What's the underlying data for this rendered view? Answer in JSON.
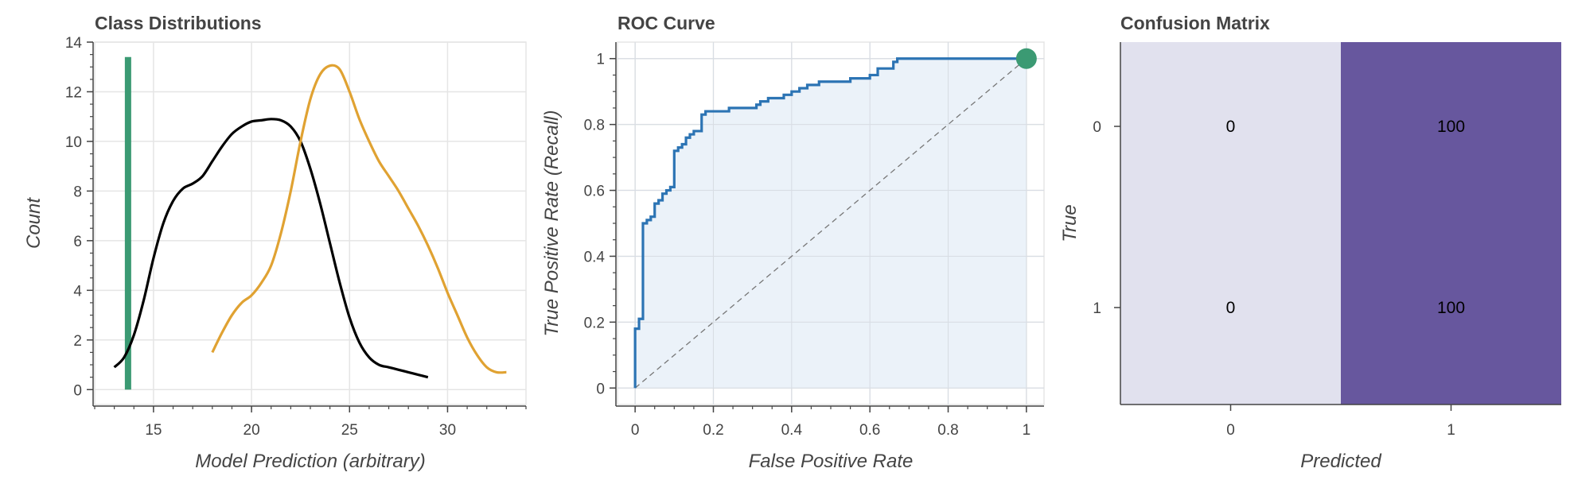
{
  "chart_data": [
    {
      "type": "line",
      "title": "Class Distributions",
      "xlabel": "Model Prediction (arbitrary)",
      "ylabel": "Count",
      "xlim": [
        12,
        34
      ],
      "ylim": [
        -0.6,
        14
      ],
      "xticks": [
        "15",
        "20",
        "25",
        "30"
      ],
      "yticks": [
        "0",
        "2",
        "4",
        "6",
        "8",
        "10",
        "12",
        "14"
      ],
      "grid": true,
      "threshold": {
        "x": 13.7,
        "y_range": [
          0,
          13.4
        ],
        "color": "#3b9a73"
      },
      "series": [
        {
          "color": "#000000",
          "x": [
            13,
            13.5,
            14,
            14.5,
            15,
            15.5,
            16,
            16.5,
            17,
            17.5,
            18,
            18.5,
            19,
            19.5,
            20,
            20.5,
            21,
            21.5,
            22,
            22.5,
            23,
            23.5,
            24,
            24.5,
            25,
            25.5,
            26,
            26.5,
            27,
            27.5,
            28,
            28.5,
            29
          ],
          "y": [
            0.9,
            1.3,
            2.2,
            3.6,
            5.3,
            6.7,
            7.6,
            8.1,
            8.3,
            8.6,
            9.2,
            9.8,
            10.3,
            10.6,
            10.8,
            10.85,
            10.9,
            10.85,
            10.6,
            10.0,
            8.9,
            7.5,
            5.9,
            4.3,
            2.9,
            1.9,
            1.3,
            1.0,
            0.9,
            0.8,
            0.7,
            0.6,
            0.5
          ]
        },
        {
          "color": "#e0a232",
          "x": [
            18,
            18.5,
            19,
            19.5,
            20,
            20.5,
            21,
            21.5,
            22,
            22.5,
            23,
            23.5,
            24,
            24.5,
            25,
            25.5,
            26,
            26.5,
            27,
            27.5,
            28,
            28.5,
            29,
            29.5,
            30,
            30.5,
            31,
            31.5,
            32,
            32.5,
            33
          ],
          "y": [
            1.5,
            2.3,
            3.0,
            3.5,
            3.8,
            4.3,
            5.0,
            6.3,
            8.0,
            10.0,
            11.7,
            12.7,
            13.05,
            12.9,
            12.0,
            10.9,
            10.0,
            9.2,
            8.6,
            8.0,
            7.3,
            6.6,
            5.8,
            4.9,
            3.9,
            3.0,
            2.1,
            1.4,
            0.9,
            0.7,
            0.7
          ]
        }
      ]
    },
    {
      "type": "line",
      "title": "ROC Curve",
      "xlabel": "False Positive Rate",
      "ylabel": "True Positive Rate (Recall)",
      "xlim": [
        -0.045,
        1.045
      ],
      "ylim": [
        -0.05,
        1.05
      ],
      "xticks": [
        "0",
        "0.2",
        "0.4",
        "0.6",
        "0.8",
        "1"
      ],
      "yticks": [
        "0",
        "0.2",
        "0.4",
        "0.6",
        "0.8",
        "1"
      ],
      "grid": true,
      "fill_color": "#e8f0f8",
      "curve_color": "#2c74b4",
      "marker": {
        "x": 1,
        "y": 1,
        "color": "#3b9a73"
      },
      "diagonal": [
        [
          0,
          0
        ],
        [
          1,
          1
        ]
      ],
      "steps": [
        [
          0,
          0
        ],
        [
          0,
          0.18
        ],
        [
          0.01,
          0.18
        ],
        [
          0.01,
          0.21
        ],
        [
          0.02,
          0.21
        ],
        [
          0.02,
          0.5
        ],
        [
          0.03,
          0.5
        ],
        [
          0.03,
          0.51
        ],
        [
          0.04,
          0.51
        ],
        [
          0.04,
          0.52
        ],
        [
          0.05,
          0.52
        ],
        [
          0.05,
          0.56
        ],
        [
          0.06,
          0.56
        ],
        [
          0.06,
          0.57
        ],
        [
          0.07,
          0.57
        ],
        [
          0.07,
          0.59
        ],
        [
          0.08,
          0.59
        ],
        [
          0.08,
          0.6
        ],
        [
          0.09,
          0.6
        ],
        [
          0.09,
          0.61
        ],
        [
          0.1,
          0.61
        ],
        [
          0.1,
          0.72
        ],
        [
          0.11,
          0.72
        ],
        [
          0.11,
          0.73
        ],
        [
          0.12,
          0.73
        ],
        [
          0.12,
          0.74
        ],
        [
          0.13,
          0.74
        ],
        [
          0.13,
          0.76
        ],
        [
          0.14,
          0.76
        ],
        [
          0.14,
          0.77
        ],
        [
          0.15,
          0.77
        ],
        [
          0.15,
          0.78
        ],
        [
          0.17,
          0.78
        ],
        [
          0.17,
          0.83
        ],
        [
          0.18,
          0.83
        ],
        [
          0.18,
          0.84
        ],
        [
          0.24,
          0.84
        ],
        [
          0.24,
          0.85
        ],
        [
          0.31,
          0.85
        ],
        [
          0.31,
          0.86
        ],
        [
          0.32,
          0.86
        ],
        [
          0.32,
          0.87
        ],
        [
          0.34,
          0.87
        ],
        [
          0.34,
          0.88
        ],
        [
          0.38,
          0.88
        ],
        [
          0.38,
          0.89
        ],
        [
          0.4,
          0.89
        ],
        [
          0.4,
          0.9
        ],
        [
          0.42,
          0.9
        ],
        [
          0.42,
          0.91
        ],
        [
          0.44,
          0.91
        ],
        [
          0.44,
          0.92
        ],
        [
          0.47,
          0.92
        ],
        [
          0.47,
          0.93
        ],
        [
          0.55,
          0.93
        ],
        [
          0.55,
          0.94
        ],
        [
          0.6,
          0.94
        ],
        [
          0.6,
          0.95
        ],
        [
          0.62,
          0.95
        ],
        [
          0.62,
          0.97
        ],
        [
          0.66,
          0.97
        ],
        [
          0.66,
          0.99
        ],
        [
          0.67,
          0.99
        ],
        [
          0.67,
          1.0
        ],
        [
          1.0,
          1.0
        ]
      ]
    },
    {
      "type": "heatmap",
      "title": "Confusion Matrix",
      "xlabel": "Predicted",
      "ylabel": "True",
      "x_categories": [
        "0",
        "1"
      ],
      "y_categories": [
        "0",
        "1"
      ],
      "values": [
        [
          0,
          100
        ],
        [
          0,
          100
        ]
      ],
      "cell_labels": [
        [
          "0",
          "100"
        ],
        [
          "0",
          "100"
        ]
      ],
      "colors": {
        "low": "#e1e1ee",
        "high": "#67579e"
      }
    }
  ]
}
